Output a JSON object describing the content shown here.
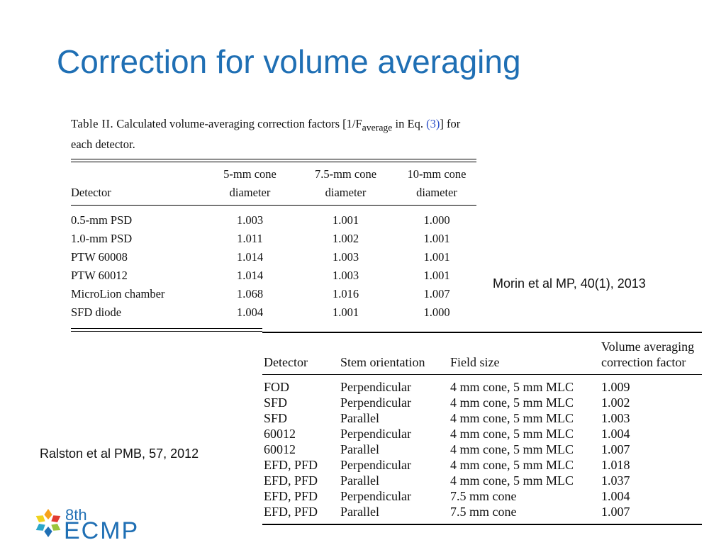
{
  "slide": {
    "title": "Correction for volume averaging"
  },
  "table1": {
    "caption_prefix": "Table II.",
    "caption_text": "Calculated volume-averaging correction factors [1/F",
    "caption_sub": "average",
    "caption_mid": "in Eq.",
    "caption_ref": "(3)",
    "caption_end": "] for each detector.",
    "headers": [
      "Detector",
      "5-mm cone diameter",
      "7.5-mm cone diameter",
      "10-mm cone diameter"
    ],
    "header_lines": [
      [
        "",
        "Detector"
      ],
      [
        "5-mm cone",
        "diameter"
      ],
      [
        "7.5-mm cone",
        "diameter"
      ],
      [
        "10-mm cone",
        "diameter"
      ]
    ],
    "rows": [
      [
        "0.5-mm PSD",
        "1.003",
        "1.001",
        "1.000"
      ],
      [
        "1.0-mm PSD",
        "1.011",
        "1.002",
        "1.001"
      ],
      [
        "PTW 60008",
        "1.014",
        "1.003",
        "1.001"
      ],
      [
        "PTW 60012",
        "1.014",
        "1.003",
        "1.001"
      ],
      [
        "MicroLion chamber",
        "1.068",
        "1.016",
        "1.007"
      ],
      [
        "SFD diode",
        "1.004",
        "1.001",
        "1.000"
      ]
    ]
  },
  "citation1": "Morin et al MP, 40(1), 2013",
  "citation2": "Ralston et al PMB, 57, 2012",
  "table2": {
    "header_lines": [
      [
        "",
        "Detector"
      ],
      [
        "",
        "Stem orientation"
      ],
      [
        "",
        "Field size"
      ],
      [
        "Volume averaging",
        "correction factor"
      ]
    ],
    "rows": [
      [
        "FOD",
        "Perpendicular",
        "4 mm cone, 5 mm MLC",
        "1.009"
      ],
      [
        "SFD",
        "Perpendicular",
        "4 mm cone, 5 mm MLC",
        "1.002"
      ],
      [
        "SFD",
        "Parallel",
        "4 mm cone, 5 mm MLC",
        "1.003"
      ],
      [
        "60012",
        "Perpendicular",
        "4 mm cone, 5 mm MLC",
        "1.004"
      ],
      [
        "60012",
        "Parallel",
        "4 mm cone, 5 mm MLC",
        "1.007"
      ],
      [
        "EFD, PFD",
        "Perpendicular",
        "4 mm cone, 5 mm MLC",
        "1.018"
      ],
      [
        "EFD, PFD",
        "Parallel",
        "4 mm cone, 5 mm MLC",
        "1.037"
      ],
      [
        "EFD, PFD",
        "Perpendicular",
        "7.5 mm cone",
        "1.004"
      ],
      [
        "EFD, PFD",
        "Parallel",
        "7.5 mm cone",
        "1.007"
      ]
    ]
  },
  "logo": {
    "superscript": "8th",
    "name": "ECMP",
    "colors": [
      "#f7a21b",
      "#e23c32",
      "#9bc53d",
      "#1f6fb4",
      "#2ba7c9",
      "#f0d21e"
    ]
  }
}
